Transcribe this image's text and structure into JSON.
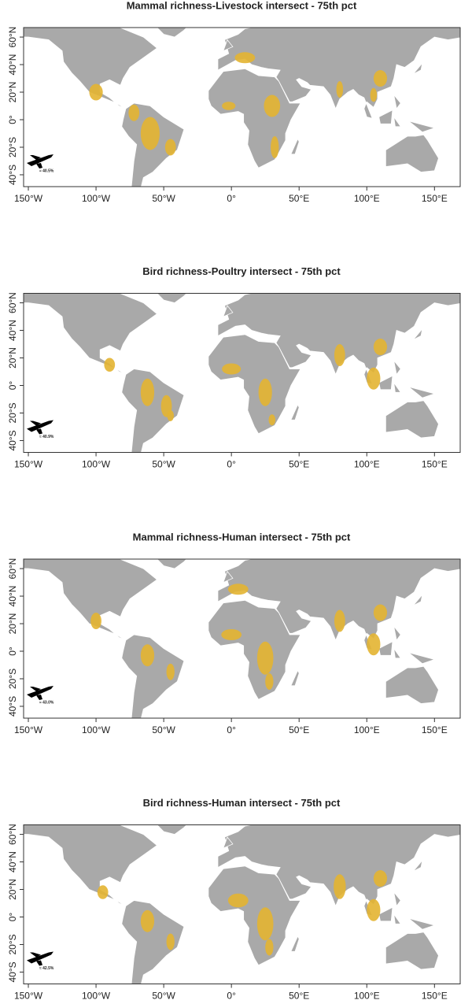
{
  "axes": {
    "xlim": [
      -153.5,
      169
    ],
    "ylim": [
      -48.6,
      66.9
    ],
    "xticks": [
      {
        "value": -150,
        "label": "150°W"
      },
      {
        "value": -100,
        "label": "100°W"
      },
      {
        "value": -50,
        "label": "50°W"
      },
      {
        "value": 0,
        "label": "0°"
      },
      {
        "value": 50,
        "label": "50°E"
      },
      {
        "value": 100,
        "label": "100°E"
      },
      {
        "value": 150,
        "label": "150°E"
      }
    ],
    "yticks": [
      {
        "value": 60,
        "label": "60°N"
      },
      {
        "value": 40,
        "label": "40°N"
      },
      {
        "value": 20,
        "label": "20°N"
      },
      {
        "value": 0,
        "label": "0°"
      },
      {
        "value": -20,
        "label": "20°S"
      },
      {
        "value": -40,
        "label": "40°S"
      }
    ]
  },
  "panels": [
    {
      "title": "Mammal richness-Livestock intersect - 75th pct",
      "flight_label": "≈ 40.5%"
    },
    {
      "title": "Bird richness-Poultry intersect - 75th pct",
      "flight_label": "≈ 40.9%"
    },
    {
      "title": "Mammal richness-Human intersect - 75th pct",
      "flight_label": "≈ 43.0%"
    },
    {
      "title": "Bird richness-Human intersect - 75th pct",
      "flight_label": "≈ 42.5%"
    }
  ]
}
